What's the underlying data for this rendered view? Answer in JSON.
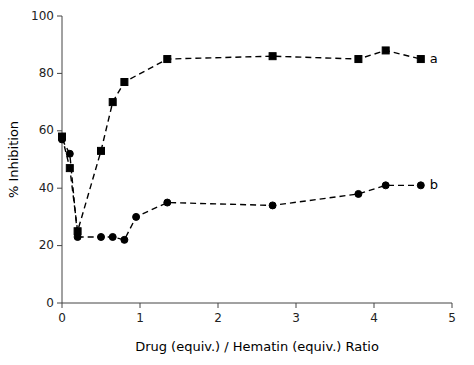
{
  "chart_data": {
    "type": "line",
    "x_label": "Drug (equiv.) / Hematin (equiv.) Ratio",
    "y_label": "% Inhibition",
    "series": [
      {
        "name": "a",
        "color": "black",
        "marker": "square",
        "line_style": "dashed",
        "x": [
          0.0,
          0.1,
          0.2,
          0.5,
          0.65,
          0.8,
          1.35,
          2.7,
          3.8,
          4.15,
          4.6
        ],
        "values": [
          58,
          47,
          25,
          53,
          70,
          77,
          85,
          86,
          85,
          88,
          85
        ]
      },
      {
        "name": "b",
        "color": "black",
        "marker": "circle",
        "line_style": "dashed",
        "x": [
          0.0,
          0.1,
          0.2,
          0.5,
          0.65,
          0.8,
          0.95,
          1.35,
          2.7,
          3.8,
          4.15,
          4.6
        ],
        "values": [
          57,
          52,
          23,
          23,
          23,
          22,
          30,
          35,
          34,
          38,
          41,
          41
        ]
      }
    ],
    "xlim": [
      0,
      5
    ],
    "ylim": [
      0,
      100
    ],
    "xticks": [
      0,
      1,
      2,
      3,
      4,
      5
    ],
    "yticks": [
      0,
      20,
      40,
      60,
      80,
      100
    ]
  }
}
